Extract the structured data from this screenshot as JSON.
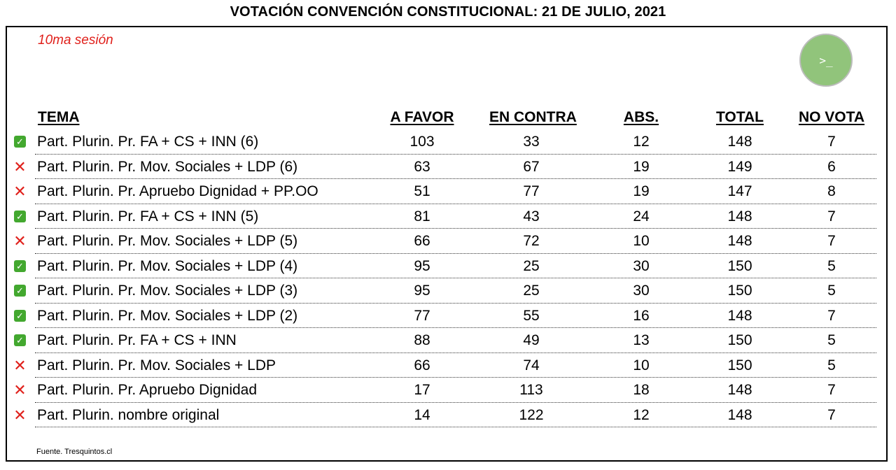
{
  "title": "VOTACIÓN CONVENCIÓN CONSTITUCIONAL: 21 DE JULIO, 2021",
  "session": "10ma sesión",
  "logo_icon": "terminal-prompt-icon",
  "logo_glyph": ">_",
  "colors": {
    "session_text": "#e0201b",
    "approved_check": "#43a82f",
    "rejected_cross": "#e0201b",
    "logo_green": "#91c47b"
  },
  "table": {
    "headers": {
      "tema": "TEMA",
      "a_favor": "A FAVOR",
      "en_contra": "EN CONTRA",
      "abs": "ABS.",
      "total": "TOTAL",
      "no_vota": "NO VOTA"
    },
    "rows": [
      {
        "status": "approved",
        "icon": "check-icon",
        "tema": "Part. Plurin. Pr. FA + CS + INN (6)",
        "a_favor": "103",
        "en_contra": "33",
        "abs": "12",
        "total": "148",
        "no_vota": "7"
      },
      {
        "status": "rejected",
        "icon": "cross-icon",
        "tema": "Part. Plurin. Pr. Mov. Sociales + LDP (6)",
        "a_favor": "63",
        "en_contra": "67",
        "abs": "19",
        "total": "149",
        "no_vota": "6"
      },
      {
        "status": "rejected",
        "icon": "cross-icon",
        "tema": "Part. Plurin. Pr. Apruebo Dignidad + PP.OO",
        "a_favor": "51",
        "en_contra": "77",
        "abs": "19",
        "total": "147",
        "no_vota": "8"
      },
      {
        "status": "approved",
        "icon": "check-icon",
        "tema": "Part. Plurin. Pr. FA + CS + INN (5)",
        "a_favor": "81",
        "en_contra": "43",
        "abs": "24",
        "total": "148",
        "no_vota": "7"
      },
      {
        "status": "rejected",
        "icon": "cross-icon",
        "tema": "Part. Plurin. Pr. Mov. Sociales + LDP (5)",
        "a_favor": "66",
        "en_contra": "72",
        "abs": "10",
        "total": "148",
        "no_vota": "7"
      },
      {
        "status": "approved",
        "icon": "check-icon",
        "tema": "Part. Plurin. Pr. Mov. Sociales + LDP (4)",
        "a_favor": "95",
        "en_contra": "25",
        "abs": "30",
        "total": "150",
        "no_vota": "5"
      },
      {
        "status": "approved",
        "icon": "check-icon",
        "tema": "Part. Plurin. Pr. Mov. Sociales + LDP (3)",
        "a_favor": "95",
        "en_contra": "25",
        "abs": "30",
        "total": "150",
        "no_vota": "5"
      },
      {
        "status": "approved",
        "icon": "check-icon",
        "tema": "Part. Plurin. Pr. Mov. Sociales + LDP (2)",
        "a_favor": "77",
        "en_contra": "55",
        "abs": "16",
        "total": "148",
        "no_vota": "7"
      },
      {
        "status": "approved",
        "icon": "check-icon",
        "tema": "Part. Plurin. Pr. FA + CS + INN",
        "a_favor": "88",
        "en_contra": "49",
        "abs": "13",
        "total": "150",
        "no_vota": "5"
      },
      {
        "status": "rejected",
        "icon": "cross-icon",
        "tema": "Part. Plurin. Pr. Mov. Sociales + LDP",
        "a_favor": "66",
        "en_contra": "74",
        "abs": "10",
        "total": "150",
        "no_vota": "5"
      },
      {
        "status": "rejected",
        "icon": "cross-icon",
        "tema": "Part. Plurin. Pr. Apruebo Dignidad",
        "a_favor": "17",
        "en_contra": "113",
        "abs": "18",
        "total": "148",
        "no_vota": "7"
      },
      {
        "status": "rejected",
        "icon": "cross-icon",
        "tema": "Part. Plurin. nombre original",
        "a_favor": "14",
        "en_contra": "122",
        "abs": "12",
        "total": "148",
        "no_vota": "7"
      }
    ]
  },
  "source": "Fuente. Tresquintos.cl"
}
